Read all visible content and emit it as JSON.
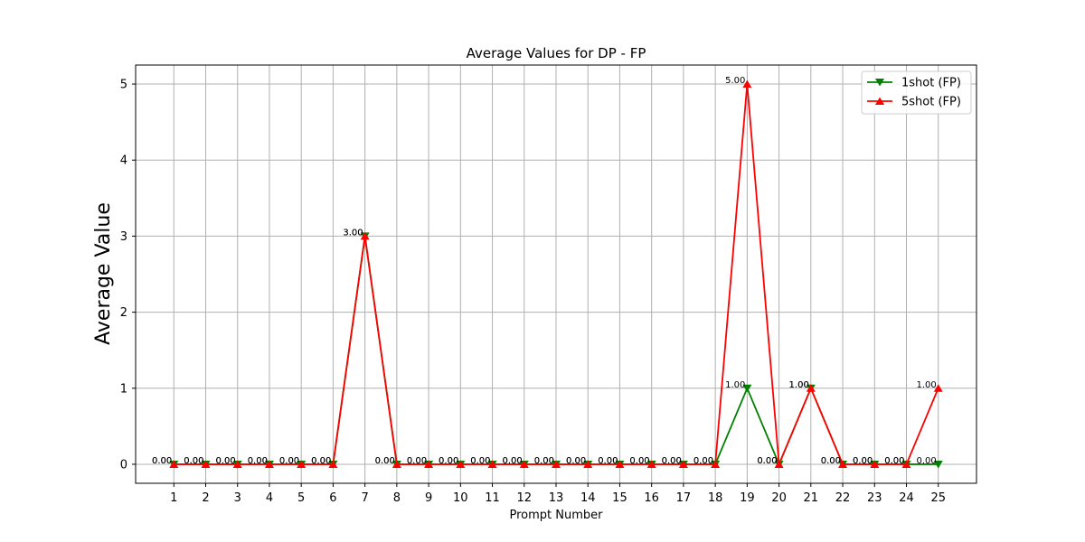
{
  "chart_data": {
    "type": "line",
    "title": "Average Values for DP - FP",
    "xlabel": "Prompt Number",
    "ylabel": "Average Value",
    "x": [
      1,
      2,
      3,
      4,
      5,
      6,
      7,
      8,
      9,
      10,
      11,
      12,
      13,
      14,
      15,
      16,
      17,
      18,
      19,
      20,
      21,
      22,
      23,
      24,
      25
    ],
    "ylim": [
      -0.25,
      5.25
    ],
    "yticks": [
      0,
      1,
      2,
      3,
      4,
      5
    ],
    "grid": true,
    "legend_position": "top-right",
    "series": [
      {
        "name": "1shot (FP)",
        "color": "#008000",
        "marker": "triangle-down",
        "values": [
          0,
          0,
          0,
          0,
          0,
          0,
          3,
          0,
          0,
          0,
          0,
          0,
          0,
          0,
          0,
          0,
          0,
          0,
          1,
          0,
          1,
          0,
          0,
          0,
          0
        ]
      },
      {
        "name": "5shot (FP)",
        "color": "#ff0000",
        "marker": "triangle-up",
        "values": [
          0,
          0,
          0,
          0,
          0,
          0,
          3,
          0,
          0,
          0,
          0,
          0,
          0,
          0,
          0,
          0,
          0,
          0,
          5,
          0,
          1,
          0,
          0,
          0,
          1
        ]
      }
    ]
  }
}
